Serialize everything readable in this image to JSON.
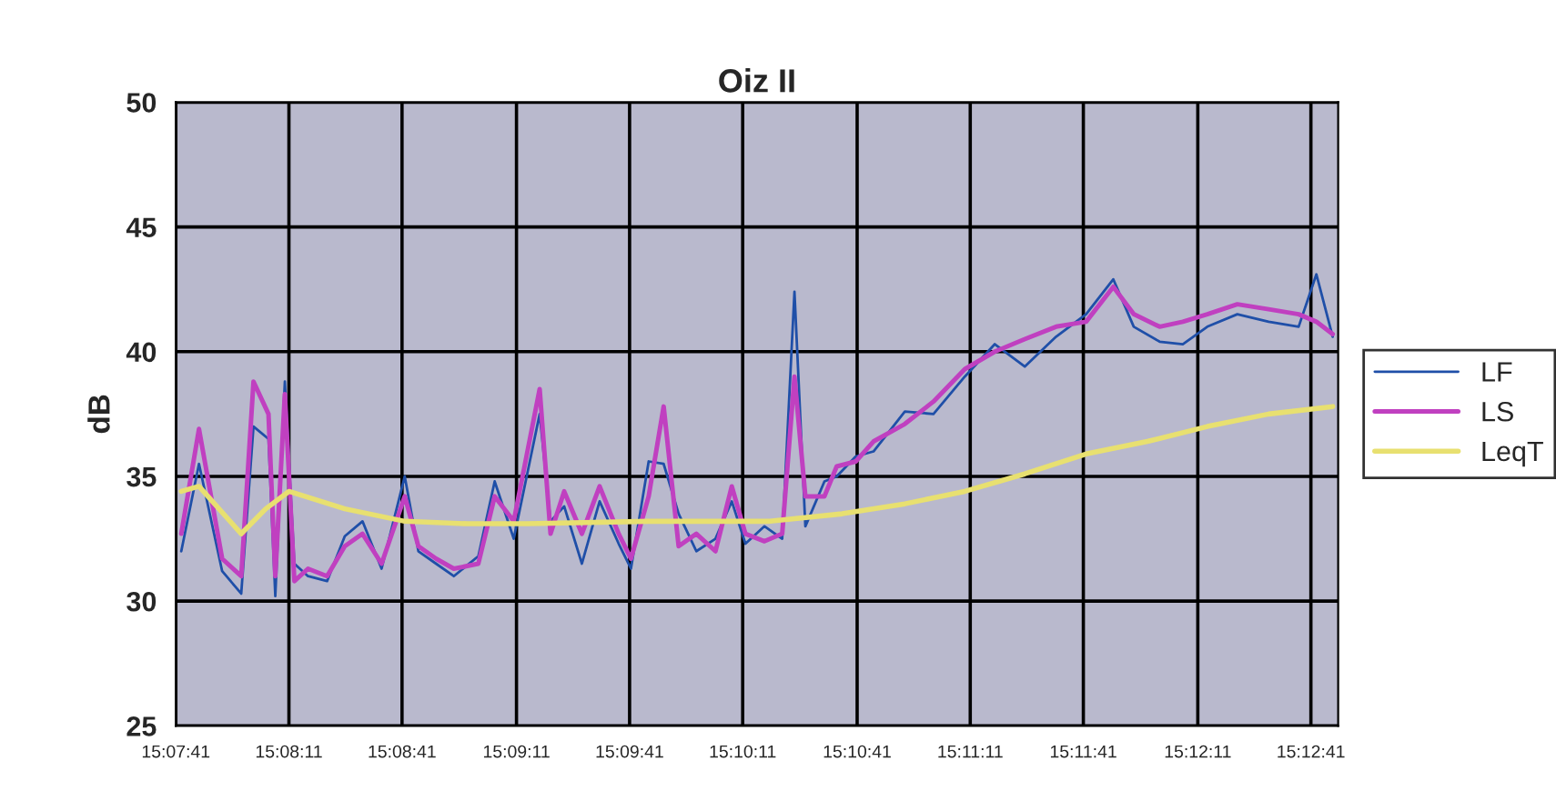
{
  "chart_data": {
    "type": "line",
    "title": "Oiz II",
    "ylabel": "dB",
    "series": [
      {
        "name": "LF",
        "color": "#1f4fa8",
        "x": [
          15.1285,
          15.1298,
          15.1315,
          15.1329,
          15.1338,
          15.1349,
          15.1354,
          15.1361,
          15.1368,
          15.1378,
          15.1392,
          15.1405,
          15.1418,
          15.1432,
          15.1449,
          15.1459,
          15.1472,
          15.1485,
          15.1503,
          15.1515,
          15.1529,
          15.1548,
          15.1556,
          15.1566,
          15.1579,
          15.1592,
          15.1606,
          15.1615,
          15.1628,
          15.1639,
          15.165,
          15.1663,
          15.1677,
          15.1689,
          15.1699,
          15.1713,
          15.1726,
          15.1735,
          15.1743,
          15.1757,
          15.1766,
          15.178,
          15.1793,
          15.1816,
          15.1837,
          15.186,
          15.1882,
          15.1904,
          15.1927,
          15.1949,
          15.1969,
          15.1984,
          15.2003,
          15.202,
          15.2038,
          15.206,
          15.2083,
          15.2105,
          15.2118,
          15.213
        ],
        "values": [
          32.0,
          35.5,
          31.2,
          30.3,
          37.0,
          36.5,
          30.2,
          38.8,
          31.5,
          31.0,
          30.8,
          32.6,
          33.2,
          31.3,
          35.0,
          32.0,
          31.5,
          31.0,
          31.8,
          34.8,
          32.5,
          37.5,
          33.2,
          33.8,
          31.5,
          34.0,
          32.3,
          31.3,
          35.6,
          35.5,
          33.5,
          32.0,
          32.5,
          34.0,
          32.3,
          33.0,
          32.5,
          42.4,
          33.0,
          34.8,
          35.0,
          35.8,
          36.0,
          37.6,
          37.5,
          39.0,
          40.3,
          39.4,
          40.6,
          41.5,
          42.9,
          41.0,
          40.4,
          40.3,
          41.0,
          41.5,
          41.2,
          41.0,
          43.1,
          40.6
        ]
      },
      {
        "name": "LS",
        "color": "#c040c0",
        "x": [
          15.1285,
          15.1298,
          15.1315,
          15.1329,
          15.1338,
          15.1349,
          15.1354,
          15.1361,
          15.1368,
          15.1378,
          15.1392,
          15.1405,
          15.1418,
          15.1432,
          15.1449,
          15.1459,
          15.1472,
          15.1485,
          15.1503,
          15.1515,
          15.1529,
          15.1548,
          15.1556,
          15.1566,
          15.1579,
          15.1592,
          15.1606,
          15.1615,
          15.1628,
          15.1639,
          15.165,
          15.1663,
          15.1677,
          15.1689,
          15.1699,
          15.1713,
          15.1726,
          15.1735,
          15.1743,
          15.1757,
          15.1766,
          15.178,
          15.1793,
          15.1816,
          15.1837,
          15.186,
          15.1882,
          15.1904,
          15.1927,
          15.1949,
          15.1969,
          15.1984,
          15.2003,
          15.202,
          15.2038,
          15.206,
          15.2083,
          15.2105,
          15.2118,
          15.213
        ],
        "values": [
          32.7,
          36.9,
          31.7,
          31.0,
          38.8,
          37.5,
          31.0,
          38.3,
          30.8,
          31.3,
          31.0,
          32.2,
          32.7,
          31.5,
          34.2,
          32.2,
          31.7,
          31.3,
          31.5,
          34.2,
          33.2,
          38.5,
          32.7,
          34.4,
          32.7,
          34.6,
          32.7,
          31.7,
          34.2,
          37.8,
          32.2,
          32.7,
          32.0,
          34.6,
          32.7,
          32.4,
          32.7,
          39.0,
          34.2,
          34.2,
          35.4,
          35.6,
          36.4,
          37.1,
          38.0,
          39.3,
          40.0,
          40.5,
          41.0,
          41.2,
          42.6,
          41.5,
          41.0,
          41.2,
          41.5,
          41.9,
          41.7,
          41.5,
          41.2,
          40.7
        ]
      },
      {
        "name": "LeqT",
        "color": "#e8e070",
        "x": [
          15.1285,
          15.1298,
          15.1329,
          15.1347,
          15.1364,
          15.1405,
          15.1449,
          15.1495,
          15.1539,
          15.1628,
          15.1717,
          15.177,
          15.1816,
          15.186,
          15.1904,
          15.1949,
          15.1994,
          15.2038,
          15.2083,
          15.213
        ],
        "values": [
          34.4,
          34.6,
          32.7,
          33.7,
          34.4,
          33.7,
          33.2,
          33.1,
          33.1,
          33.2,
          33.2,
          33.5,
          33.9,
          34.4,
          35.1,
          35.9,
          36.4,
          37.0,
          37.5,
          37.8
        ]
      }
    ],
    "xlim": [
      15.1281,
      15.2134
    ],
    "xticks": [
      {
        "value": 15.1281,
        "label": "15:07:41"
      },
      {
        "value": 15.1364,
        "label": "15:08:11"
      },
      {
        "value": 15.1447,
        "label": "15:08:41"
      },
      {
        "value": 15.1531,
        "label": "15:09:11"
      },
      {
        "value": 15.1614,
        "label": "15:09:41"
      },
      {
        "value": 15.1697,
        "label": "15:10:11"
      },
      {
        "value": 15.1781,
        "label": "15:10:41"
      },
      {
        "value": 15.1864,
        "label": "15:11:11"
      },
      {
        "value": 15.1947,
        "label": "15:11:41"
      },
      {
        "value": 15.2031,
        "label": "15:12:11"
      },
      {
        "value": 15.2114,
        "label": "15:12:41"
      }
    ],
    "ylim": [
      25,
      50
    ],
    "yticks": [
      25,
      30,
      35,
      40,
      45,
      50
    ],
    "grid": true,
    "legend": "right",
    "marker": "none",
    "line_style": "solid"
  }
}
